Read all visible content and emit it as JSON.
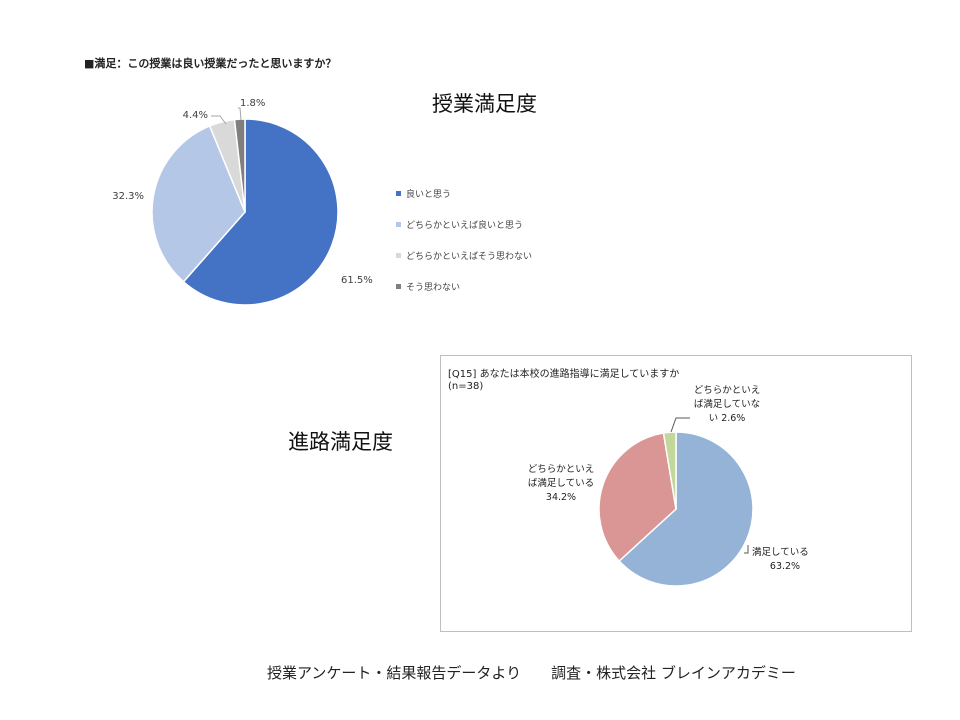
{
  "headings": {
    "class_satisfaction": "授業満足度",
    "career_satisfaction": "進路満足度"
  },
  "footer": "授業アンケート・結果報告データより　　調査・株式会社 ブレインアカデミー",
  "chart_data": [
    {
      "type": "pie",
      "title": "■満足：この授業は良い授業だったと思いますか？",
      "categories": [
        "良いと思う",
        "どちらかといえば良いと思う",
        "どちらかといえばそう思わない",
        "そう思わない"
      ],
      "values": [
        61.5,
        32.3,
        4.4,
        1.8
      ],
      "data_labels": [
        "61.5%",
        "32.3%",
        "4.4%",
        "1.8%"
      ],
      "colors": [
        "#4472c4",
        "#b4c7e7",
        "#d9d9d9",
        "#7f7f7f"
      ],
      "legend_position": "right"
    },
    {
      "type": "pie",
      "title": "[Q15] あなたは本校の進路指導に満足していますか",
      "subtitle": "(n=38)",
      "categories": [
        "満足している",
        "どちらかといえば満足している",
        "どちらかといえば満足していない"
      ],
      "values": [
        63.2,
        34.2,
        2.6
      ],
      "data_labels": [
        [
          "満足している",
          "63.2%"
        ],
        [
          "どちらかといえ",
          "ば満足している",
          "34.2%"
        ],
        [
          "どちらかといえ",
          "ば満足していな",
          "い 2.6%"
        ]
      ],
      "colors": [
        "#95b3d7",
        "#d99694",
        "#c3d69b"
      ],
      "legend_position": "none"
    }
  ]
}
